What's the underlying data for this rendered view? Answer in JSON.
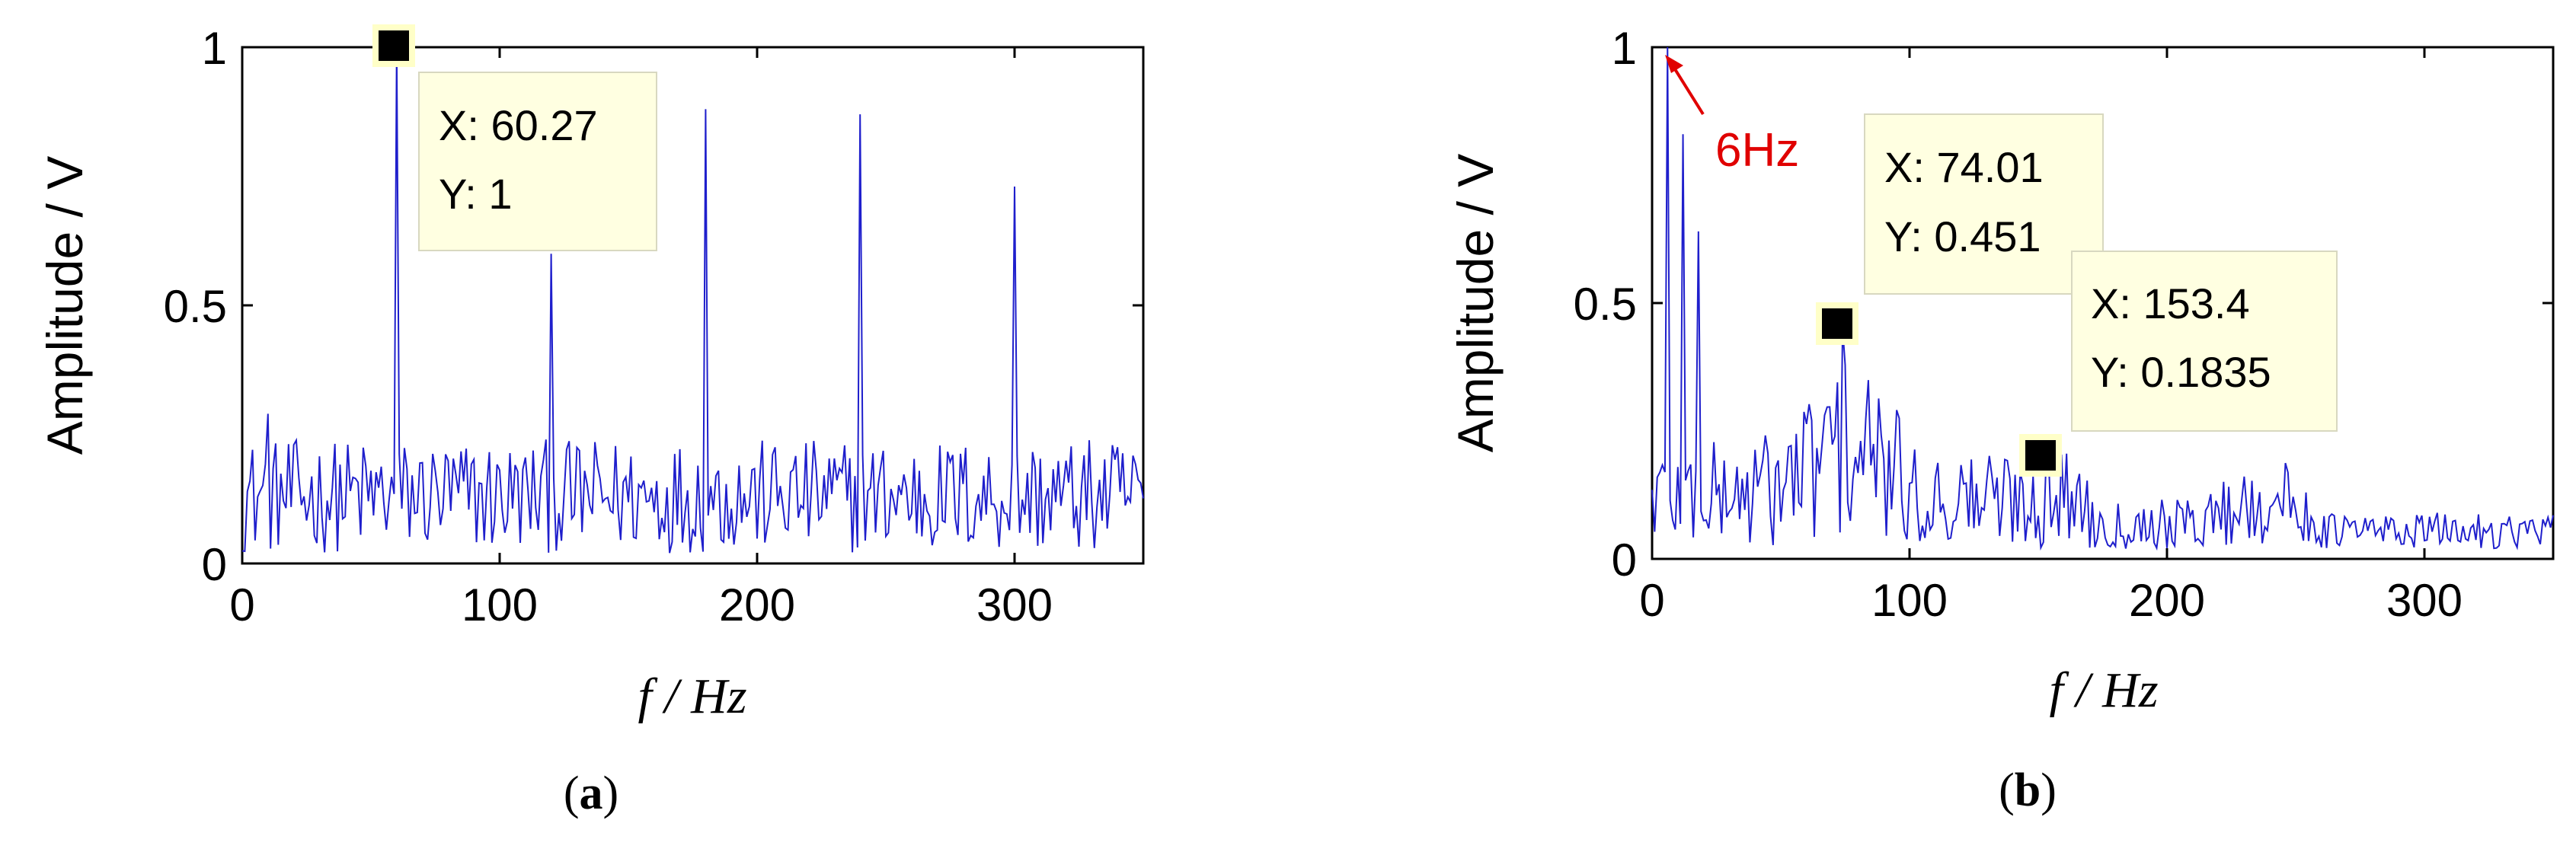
{
  "chart_data": [
    {
      "type": "line",
      "panel_label": "(a)",
      "panel_letter": "a",
      "xlabel": "f / Hz",
      "ylabel": "Amplitude / V",
      "xlim": [
        0,
        350
      ],
      "ylim": [
        0,
        1
      ],
      "xticks": [
        0,
        100,
        200,
        300
      ],
      "xtick_labels": [
        "0",
        "100",
        "200",
        "300"
      ],
      "yticks": [
        0,
        0.5,
        1
      ],
      "ytick_labels": [
        "0",
        "0.5",
        "1"
      ],
      "grid": false,
      "line_color": "#1f1fcc",
      "series": [
        {
          "peaks": [
            {
              "x": 10,
              "y": 0.29
            },
            {
              "x": 60.27,
              "y": 1
            },
            {
              "x": 120,
              "y": 0.6
            },
            {
              "x": 180,
              "y": 0.88
            },
            {
              "x": 240,
              "y": 0.87
            },
            {
              "x": 300,
              "y": 0.73
            }
          ],
          "noise_floor": {
            "min": 0.02,
            "max": 0.24
          }
        }
      ],
      "datatips": [
        {
          "x_text": "X: 60.27",
          "y_text": "Y: 1",
          "x": 60.27,
          "y": 1
        }
      ]
    },
    {
      "type": "line",
      "panel_label": "(b)",
      "panel_letter": "b",
      "xlabel": "f / Hz",
      "ylabel": "Amplitude / V",
      "xlim": [
        0,
        350
      ],
      "ylim": [
        0,
        1
      ],
      "xticks": [
        0,
        100,
        200,
        300
      ],
      "xtick_labels": [
        "0",
        "100",
        "200",
        "300"
      ],
      "yticks": [
        0,
        0.5,
        1
      ],
      "ytick_labels": [
        "0",
        "0.5",
        "1"
      ],
      "grid": false,
      "line_color": "#1f1fcc",
      "series": [
        {
          "peaks": [
            {
              "x": 6,
              "y": 1
            },
            {
              "x": 12,
              "y": 0.83
            },
            {
              "x": 18,
              "y": 0.64
            },
            {
              "x": 74.01,
              "y": 0.451
            },
            {
              "x": 153.4,
              "y": 0.1835
            }
          ],
          "noise_floor": {
            "min": 0.02,
            "max": 0.3
          }
        }
      ],
      "datatips": [
        {
          "x_text": "X: 74.01",
          "y_text": "Y: 0.451",
          "x": 74.01,
          "y": 0.451
        },
        {
          "x_text": "X: 153.4",
          "y_text": "Y: 0.1835",
          "x": 153.4,
          "y": 0.1835
        }
      ],
      "annotation": {
        "text": "6Hz",
        "x": 6,
        "y": 1,
        "color": "#e00000"
      }
    }
  ]
}
